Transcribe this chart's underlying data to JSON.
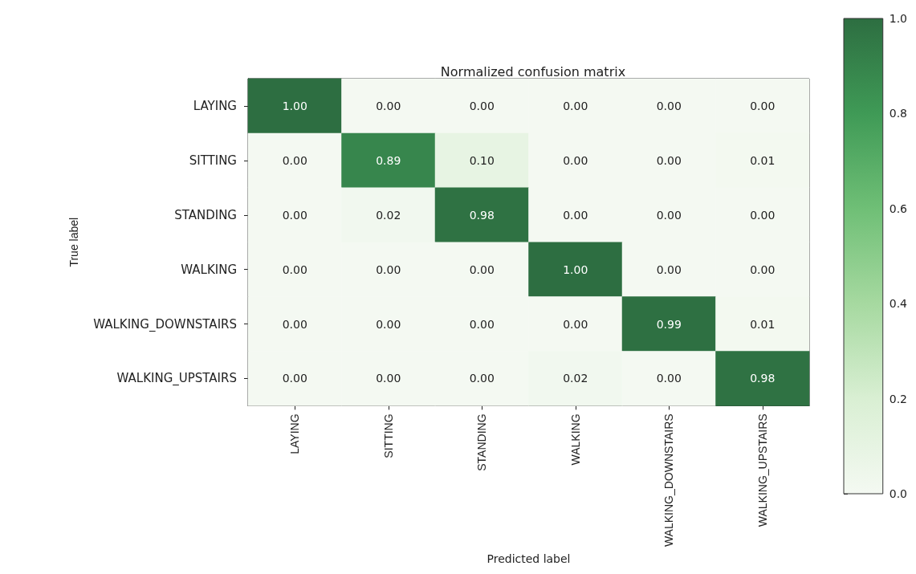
{
  "chart_data": {
    "type": "heatmap",
    "title": "Normalized confusion matrix",
    "xlabel": "Predicted label",
    "ylabel": "True label",
    "categories": [
      "LAYING",
      "SITTING",
      "STANDING",
      "WALKING",
      "WALKING_DOWNSTAIRS",
      "WALKING_UPSTAIRS"
    ],
    "y_categories": [
      "LAYING",
      "SITTING",
      "STANDING",
      "WALKING",
      "WALKING_DOWNSTAIRS",
      "WALKING_UPSTAIRS"
    ],
    "cells": [
      [
        1.0,
        0,
        0,
        0,
        0,
        0
      ],
      [
        0,
        0.89,
        0.1,
        0,
        0,
        0.01
      ],
      [
        0,
        0.02,
        0.98,
        0,
        0,
        0
      ],
      [
        0,
        0,
        0,
        1.0,
        0,
        0
      ],
      [
        0,
        0,
        0,
        0,
        0.99,
        0.01
      ],
      [
        0,
        0,
        0,
        0.02,
        0,
        0.98
      ]
    ],
    "cell_labels": [
      [
        "1.00",
        "0.00",
        "0.00",
        "0.00",
        "0.00",
        "0.00"
      ],
      [
        "0.00",
        "0.89",
        "0.10",
        "0.00",
        "0.00",
        "0.01"
      ],
      [
        "0.00",
        "0.02",
        "0.98",
        "0.00",
        "0.00",
        "0.00"
      ],
      [
        "0.00",
        "0.00",
        "0.00",
        "1.00",
        "0.00",
        "0.00"
      ],
      [
        "0.00",
        "0.00",
        "0.00",
        "0.00",
        "0.99",
        "0.01"
      ],
      [
        "0.00",
        "0.00",
        "0.00",
        "0.02",
        "0.00",
        "0.98"
      ]
    ],
    "clim": [
      0,
      1
    ],
    "cticks": [
      {
        "value": 0,
        "label": "0.0"
      },
      {
        "value": 0.2,
        "label": "0.2"
      },
      {
        "value": 0.4,
        "label": "0.4"
      },
      {
        "value": 0.6,
        "label": "0.6"
      },
      {
        "value": 0.8,
        "label": "0.8"
      },
      {
        "value": 1,
        "label": "1.0"
      }
    ]
  }
}
